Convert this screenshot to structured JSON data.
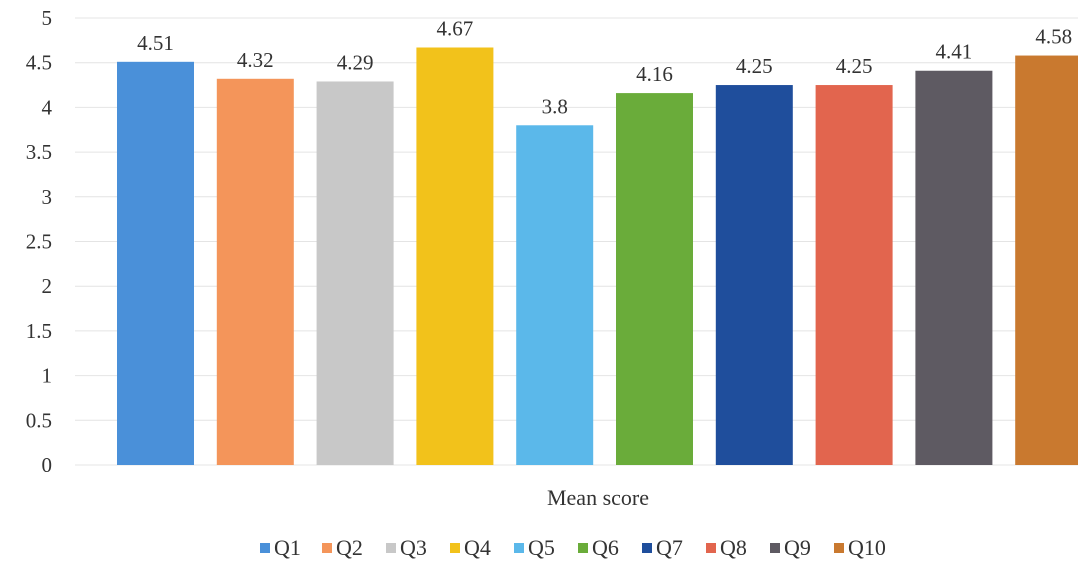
{
  "chart_data": {
    "type": "bar",
    "xlabel": "Mean score",
    "ylabel": "",
    "ylim": [
      0,
      5
    ],
    "yticks": [
      "0",
      "0.5",
      "1",
      "1.5",
      "2",
      "2.5",
      "3",
      "3.5",
      "4",
      "4.5",
      "5"
    ],
    "grid": true,
    "legend_position": "bottom",
    "categories": [
      "Q1",
      "Q2",
      "Q3",
      "Q4",
      "Q5",
      "Q6",
      "Q7",
      "Q8",
      "Q9",
      "Q10"
    ],
    "values": [
      4.51,
      4.32,
      4.29,
      4.67,
      3.8,
      4.16,
      4.25,
      4.25,
      4.41,
      4.58
    ],
    "data_labels": [
      "4.51",
      "4.32",
      "4.29",
      "4.67",
      "3.8",
      "4.16",
      "4.25",
      "4.25",
      "4.41",
      "4.58"
    ],
    "colors": [
      "#4a90d9",
      "#f4955a",
      "#c8c8c8",
      "#f2c21b",
      "#5bb8ea",
      "#6aac3a",
      "#1f4e9c",
      "#e2654e",
      "#5e5a62",
      "#c9792f"
    ]
  }
}
